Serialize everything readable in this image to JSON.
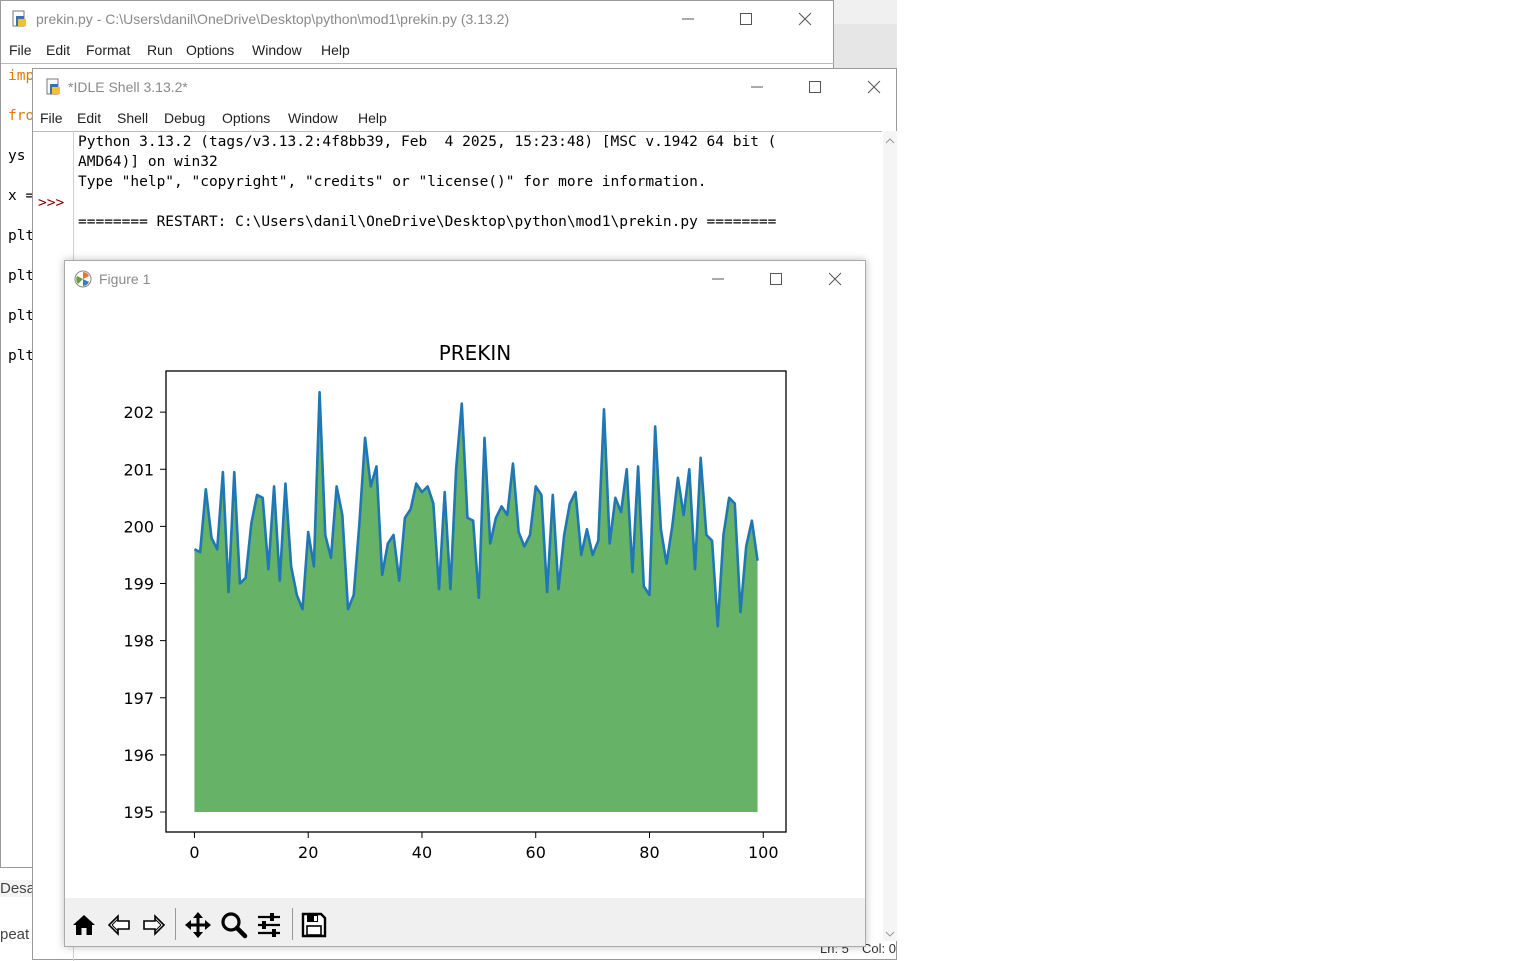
{
  "editor": {
    "title": "prekin.py - C:\\Users\\danil\\OneDrive\\Desktop\\python\\mod1\\prekin.py (3.13.2)",
    "menu": [
      "File",
      "Edit",
      "Format",
      "Run",
      "Options",
      "Window",
      "Help"
    ],
    "code_lines": [
      "imp",
      "fro",
      "ys",
      "x =",
      "plt",
      "plt",
      "plt",
      "plt"
    ]
  },
  "shell": {
    "title": "*IDLE Shell 3.13.2*",
    "menu": [
      "File",
      "Edit",
      "Shell",
      "Debug",
      "Options",
      "Window",
      "Help"
    ],
    "lines": [
      "Python 3.13.2 (tags/v3.13.2:4f8bb39, Feb  4 2025, 15:23:48) [MSC v.1942 64 bit (",
      "AMD64)] on win32",
      "Type \"help\", \"copyright\", \"credits\" or \"license()\" for more information.",
      "",
      "======== RESTART: C:\\Users\\danil\\OneDrive\\Desktop\\python\\mod1\\prekin.py ========"
    ],
    "prompt": ">>>",
    "status": {
      "ln": "Ln: 5",
      "col": "Col: 0"
    }
  },
  "background_snippets": [
    "Desa",
    "peat"
  ],
  "figure": {
    "title": "Figure 1",
    "toolbar": [
      {
        "name": "home-icon",
        "label": "Home"
      },
      {
        "name": "back-icon",
        "label": "Back"
      },
      {
        "name": "forward-icon",
        "label": "Forward"
      },
      {
        "name": "pan-icon",
        "label": "Pan"
      },
      {
        "name": "zoom-icon",
        "label": "Zoom"
      },
      {
        "name": "configure-subplots-icon",
        "label": "Configure subplots"
      },
      {
        "name": "save-icon",
        "label": "Save"
      }
    ]
  },
  "chart_data": {
    "type": "area",
    "title": "PREKIN",
    "xlabel": "",
    "ylabel": "",
    "xlim": [
      -5,
      104
    ],
    "ylim": [
      194.65,
      202.72
    ],
    "xticks": [
      0,
      20,
      40,
      60,
      80,
      100
    ],
    "yticks": [
      195,
      196,
      197,
      198,
      199,
      200,
      201,
      202
    ],
    "fill_baseline": 195,
    "fill_color": "#66b266",
    "line_color": "#1f77b4",
    "grid": false,
    "x": [
      0,
      1,
      2,
      3,
      4,
      5,
      6,
      7,
      8,
      9,
      10,
      11,
      12,
      13,
      14,
      15,
      16,
      17,
      18,
      19,
      20,
      21,
      22,
      23,
      24,
      25,
      26,
      27,
      28,
      29,
      30,
      31,
      32,
      33,
      34,
      35,
      36,
      37,
      38,
      39,
      40,
      41,
      42,
      43,
      44,
      45,
      46,
      47,
      48,
      49,
      50,
      51,
      52,
      53,
      54,
      55,
      56,
      57,
      58,
      59,
      60,
      61,
      62,
      63,
      64,
      65,
      66,
      67,
      68,
      69,
      70,
      71,
      72,
      73,
      74,
      75,
      76,
      77,
      78,
      79,
      80,
      81,
      82,
      83,
      84,
      85,
      86,
      87,
      88,
      89,
      90,
      91,
      92,
      93,
      94,
      95,
      96,
      97,
      98,
      99
    ],
    "y": [
      199.6,
      199.55,
      200.65,
      199.8,
      199.6,
      200.95,
      198.85,
      200.95,
      199.0,
      199.1,
      200.05,
      200.55,
      200.5,
      199.25,
      200.7,
      199.05,
      200.75,
      199.3,
      198.8,
      198.55,
      199.9,
      199.3,
      202.35,
      199.85,
      199.45,
      200.7,
      200.2,
      198.55,
      198.8,
      200.05,
      201.55,
      200.7,
      201.05,
      199.15,
      199.7,
      199.85,
      199.05,
      200.15,
      200.3,
      200.75,
      200.6,
      200.7,
      200.4,
      198.9,
      200.6,
      198.9,
      201.0,
      202.15,
      200.15,
      200.1,
      198.75,
      201.55,
      199.7,
      200.15,
      200.35,
      200.2,
      201.1,
      199.9,
      199.65,
      199.85,
      200.7,
      200.55,
      198.85,
      200.55,
      198.9,
      199.85,
      200.4,
      200.6,
      199.5,
      199.95,
      199.5,
      199.75,
      202.05,
      199.7,
      200.5,
      200.25,
      201.0,
      199.2,
      201.05,
      198.95,
      198.8,
      201.75,
      199.95,
      199.35,
      200.0,
      200.85,
      200.2,
      201.0,
      199.25,
      201.2,
      199.85,
      199.75,
      198.25,
      199.85,
      200.5,
      200.4,
      198.5,
      199.65,
      200.1,
      199.4
    ]
  }
}
